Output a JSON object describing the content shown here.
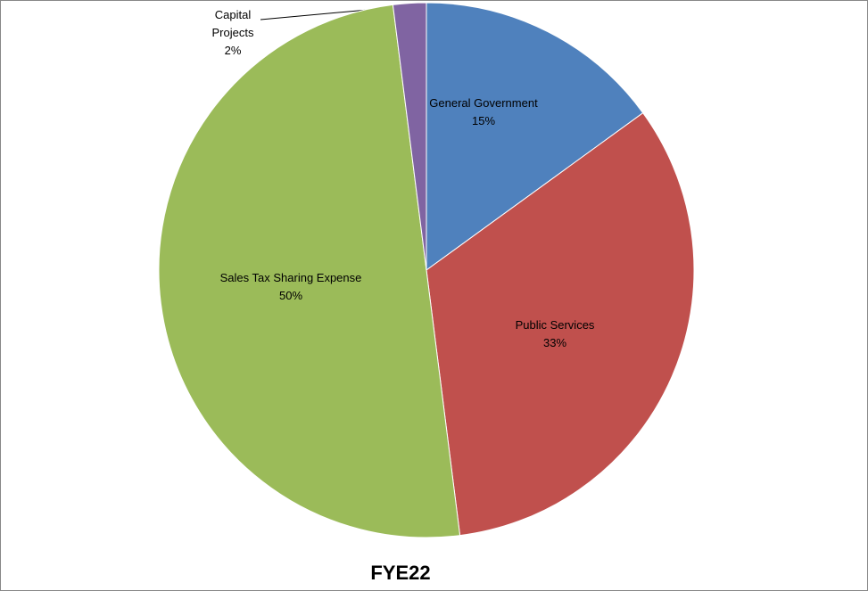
{
  "chart_data": {
    "type": "pie",
    "title": "FYE22",
    "categories": [
      "General Government",
      "Public Services",
      "Sales Tax Sharing Expense",
      "Capital Projects"
    ],
    "values": [
      15,
      33,
      50,
      2
    ],
    "value_labels": [
      "15%",
      "33%",
      "50%",
      "2%"
    ],
    "colors": [
      "#4f81bd",
      "#c0504d",
      "#9bbb59",
      "#8064a2"
    ]
  }
}
